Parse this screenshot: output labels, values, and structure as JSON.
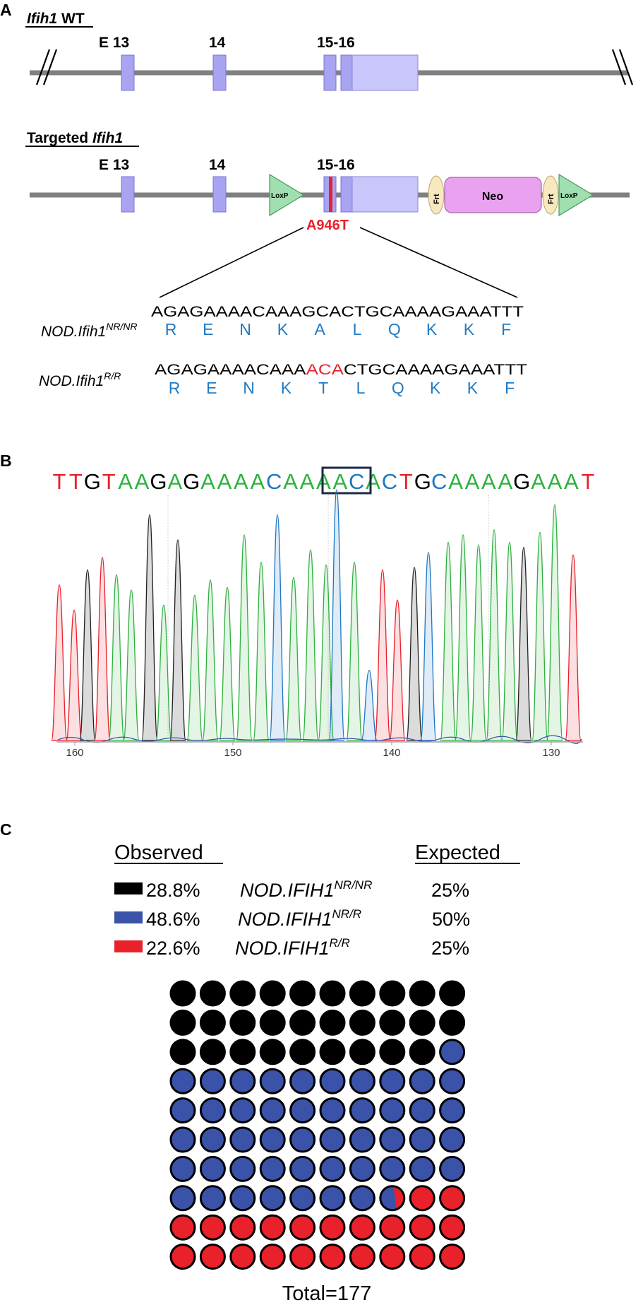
{
  "panel_a": {
    "letter": "A",
    "wt": {
      "title_gene": "Ifih1",
      "title_suffix": " WT",
      "exon_labels": [
        "E 13",
        "14",
        "15-16"
      ]
    },
    "targeted": {
      "title_prefix": "Targeted ",
      "title_gene": "Ifih1",
      "exon_labels": [
        "E 13",
        "14",
        "15-16"
      ],
      "elements": {
        "loxp": "LoxP",
        "frt": "Frt",
        "neo": "Neo"
      },
      "mutation_label": "A946T"
    },
    "sequences": {
      "nr_label_base": "NOD.Ifih1",
      "nr_label_sup": "NR/NR",
      "nr_dna": "AGAGAAAACAAAGCACTGCAAAAGAAATTT",
      "nr_aa": [
        "R",
        "E",
        "N",
        "K",
        "A",
        "L",
        "Q",
        "K",
        "K",
        "F"
      ],
      "r_label_base": "NOD.Ifih1",
      "r_label_sup": "R/R",
      "r_dna_before": "AGAGAAAACAAA",
      "r_dna_mut": "ACA",
      "r_dna_after": "CTGCAAAAGAAATTT",
      "r_aa": [
        "R",
        "E",
        "N",
        "K",
        "T",
        "L",
        "Q",
        "K",
        "K",
        "F"
      ]
    }
  },
  "panel_b": {
    "letter": "B",
    "sequence": "TTGTAAGAGAAAACAAAACACTGCAAAAGAAAT",
    "boxed_start": 17,
    "boxed_length": 3,
    "base_colors": {
      "A": "#2fb040",
      "C": "#1f77c4",
      "G": "#000000",
      "T": "#e8212b"
    },
    "axis_ticks": [
      "160",
      "150",
      "140",
      "130"
    ]
  },
  "panel_c": {
    "letter": "C",
    "observed_header": "Observed",
    "expected_header": "Expected",
    "rows": [
      {
        "color": "#000000",
        "observed": "28.8%",
        "genotype_base": "NOD.IFIH1",
        "genotype_sup": "NR/NR",
        "expected": "25%"
      },
      {
        "color": "#3a52a8",
        "observed": "48.6%",
        "genotype_base": "NOD.IFIH1",
        "genotype_sup": "NR/R",
        "expected": "50%"
      },
      {
        "color": "#e8212b",
        "observed": "22.6%",
        "genotype_base": "NOD.IFIH1",
        "genotype_sup": "R/R",
        "expected": "25%"
      }
    ],
    "waffle": {
      "columns": 10,
      "rows": 10,
      "black": 29,
      "blue": 48.6,
      "red": 22.6
    },
    "total_label": "Total=177"
  }
}
